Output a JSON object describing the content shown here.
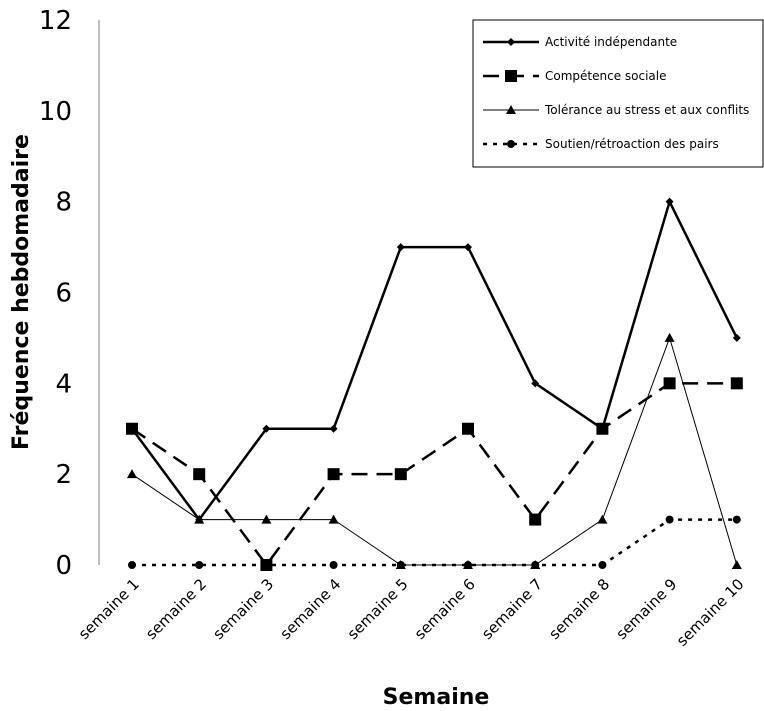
{
  "chart_data": {
    "type": "line",
    "title": "",
    "xlabel": "Semaine",
    "ylabel": "Fréquence hebdomadaire",
    "ylim": [
      0,
      12
    ],
    "yticks": [
      "0",
      "2",
      "4",
      "6",
      "8",
      "10",
      "12"
    ],
    "categories": [
      "semaine 1",
      "semaine 2",
      "semaine 3",
      "semaine 4",
      "semaine 5",
      "semaine 6",
      "semaine 7",
      "semaine 8",
      "semaine 9",
      "semaine 10"
    ],
    "grid": false,
    "legend_position": "top-right",
    "series": [
      {
        "name": "Activité indépendante",
        "values": [
          3,
          1,
          3,
          3,
          7,
          7,
          4,
          3,
          8,
          5
        ],
        "color": "#000000",
        "line": "solid-thick",
        "marker": "diamond"
      },
      {
        "name": "Compétence sociale",
        "values": [
          3,
          2,
          0,
          2,
          2,
          3,
          1,
          3,
          4,
          4
        ],
        "color": "#000000",
        "line": "dashed-long",
        "marker": "square"
      },
      {
        "name": "Tolérance au stress et aux conflits",
        "values": [
          2,
          1,
          1,
          1,
          0,
          0,
          0,
          1,
          5,
          0
        ],
        "color": "#000000",
        "line": "solid-thin",
        "marker": "triangle"
      },
      {
        "name": "Soutien/rétroaction des pairs",
        "values": [
          0,
          0,
          0,
          0,
          0,
          0,
          0,
          0,
          1,
          1
        ],
        "color": "#000000",
        "line": "dotted",
        "marker": "circle"
      }
    ]
  }
}
